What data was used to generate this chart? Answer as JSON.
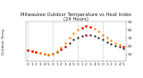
{
  "title": "Milwaukee Outdoor Temperature vs Heat Index\n(24 Hours)",
  "hours": [
    0,
    1,
    2,
    3,
    4,
    5,
    6,
    7,
    8,
    9,
    10,
    11,
    12,
    13,
    14,
    15,
    16,
    17,
    18,
    19,
    20,
    21,
    22,
    23
  ],
  "temp": [
    55,
    54,
    53,
    52,
    51,
    50,
    51,
    53,
    56,
    60,
    64,
    68,
    71,
    73,
    74,
    74,
    73,
    71,
    68,
    65,
    63,
    61,
    59,
    57
  ],
  "heat_index": [
    55,
    54,
    53,
    52,
    51,
    50,
    51,
    54,
    58,
    64,
    70,
    76,
    80,
    83,
    85,
    84,
    82,
    78,
    74,
    70,
    67,
    64,
    62,
    59
  ],
  "temp_color": "#111111",
  "heat_color": "#ff8800",
  "red_color": "#ff0000",
  "ylim": [
    42,
    90
  ],
  "yticks": [
    50,
    60,
    70,
    80,
    90
  ],
  "background": "#ffffff",
  "grid_color": "#bbbbbb",
  "title_fontsize": 3.8,
  "tick_fontsize": 3.2,
  "left_label": "Outdoor Temp"
}
